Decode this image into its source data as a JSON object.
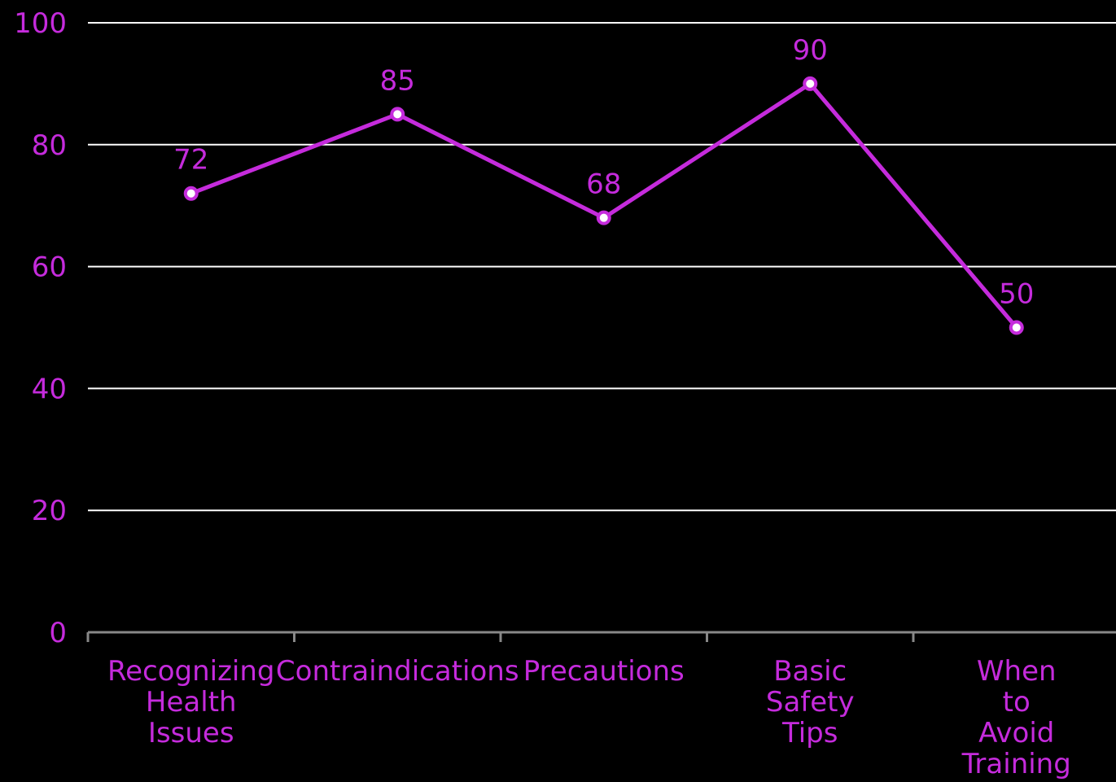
{
  "chart_data": {
    "type": "line",
    "title": "",
    "xlabel": "",
    "ylabel": "",
    "categories": [
      [
        "Recognizing",
        "Health",
        "Issues"
      ],
      [
        "Contraindications"
      ],
      [
        "Precautions"
      ],
      [
        "Basic",
        "Safety",
        "Tips"
      ],
      [
        "When",
        "to",
        "Avoid",
        "Training"
      ]
    ],
    "values": [
      72,
      85,
      68,
      90,
      50
    ],
    "ylim": [
      0,
      100
    ],
    "yticks": [
      "0",
      "20",
      "40",
      "60",
      "80",
      "100"
    ],
    "grid": true,
    "legend": "none",
    "colors": {
      "background": "#000000",
      "line": "#c52bdc",
      "text": "#c52bdc",
      "grid": "#ffffff",
      "axis": "#888888",
      "marker_fill": "#ffffff"
    }
  }
}
